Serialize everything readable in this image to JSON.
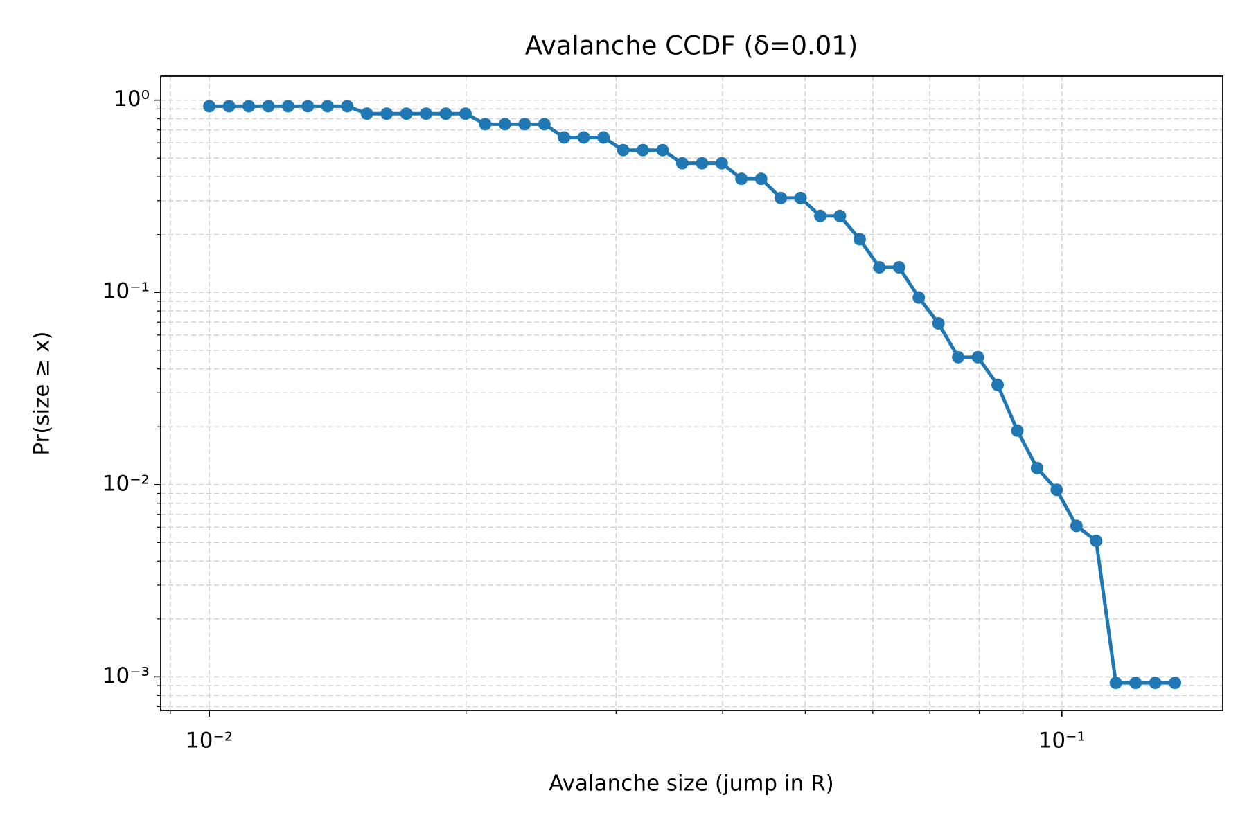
{
  "chart_data": {
    "type": "line",
    "title": "Avalanche CCDF (δ=0.01)",
    "xlabel": "Avalanche size (jump in R)",
    "ylabel": "Pr(size ≥ x)",
    "xscale": "log",
    "yscale": "log",
    "grid": true,
    "markers": true,
    "color": "#1f77b4",
    "x": [
      0.01,
      0.010547,
      0.011123,
      0.011731,
      0.012372,
      0.013049,
      0.013762,
      0.014514,
      0.015308,
      0.016145,
      0.017027,
      0.017958,
      0.01894,
      0.019975,
      0.021067,
      0.022219,
      0.023433,
      0.024714,
      0.026065,
      0.02749,
      0.028993,
      0.030578,
      0.032249,
      0.034012,
      0.035872,
      0.037833,
      0.039901,
      0.042082,
      0.044383,
      0.046809,
      0.049368,
      0.052067,
      0.054913,
      0.057915,
      0.061081,
      0.06442,
      0.067941,
      0.071656,
      0.075573,
      0.079704,
      0.084061,
      0.088656,
      0.093503,
      0.098614,
      0.10401,
      0.10969,
      0.11569,
      0.12201,
      0.12868,
      0.13572
    ],
    "values": [
      0.93,
      0.93,
      0.93,
      0.93,
      0.93,
      0.93,
      0.93,
      0.93,
      0.85,
      0.85,
      0.85,
      0.85,
      0.85,
      0.85,
      0.75,
      0.75,
      0.75,
      0.75,
      0.64,
      0.64,
      0.64,
      0.55,
      0.55,
      0.55,
      0.47,
      0.47,
      0.47,
      0.39,
      0.39,
      0.31,
      0.31,
      0.25,
      0.25,
      0.189,
      0.135,
      0.135,
      0.094,
      0.069,
      0.046,
      0.046,
      0.033,
      0.0191,
      0.0122,
      0.0094,
      0.0061,
      0.0051,
      0.00093,
      0.00093,
      0.00093,
      0.00093
    ],
    "xlim": [
      0.00877,
      0.1544
    ],
    "ylim": [
      0.000668,
      1.333
    ],
    "xticks": [
      {
        "value": 0.01,
        "label": "10⁻²"
      },
      {
        "value": 0.1,
        "label": "10⁻¹"
      }
    ],
    "yticks": [
      {
        "value": 0.001,
        "label": "10⁻³"
      },
      {
        "value": 0.01,
        "label": "10⁻²"
      },
      {
        "value": 0.1,
        "label": "10⁻¹"
      },
      {
        "value": 1,
        "label": "10⁰"
      }
    ],
    "xminorticks": [
      0.009,
      0.02,
      0.03,
      0.04,
      0.05,
      0.06,
      0.07,
      0.08,
      0.09
    ],
    "yminorticks": [
      0.0007,
      0.0008,
      0.0009,
      0.002,
      0.003,
      0.004,
      0.005,
      0.006,
      0.007,
      0.008,
      0.009,
      0.02,
      0.03,
      0.04,
      0.05,
      0.06,
      0.07,
      0.08,
      0.09,
      0.2,
      0.3,
      0.4,
      0.5,
      0.6,
      0.7,
      0.8,
      0.9
    ]
  }
}
